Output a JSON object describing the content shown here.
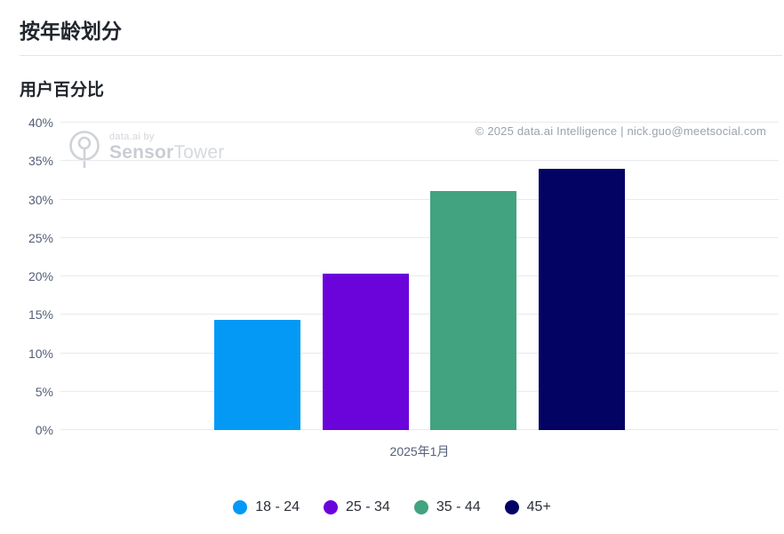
{
  "page": {
    "title": "按年龄划分",
    "copyright": "© 2025 data.ai Intelligence | nick.guo@meetsocial.com"
  },
  "watermark": {
    "prefix": "data.ai by",
    "brand_bold": "Sensor",
    "brand_light": "Tower",
    "logo_icon": "sensor-tower-logo"
  },
  "chart_data": {
    "type": "bar",
    "title": "用户百分比",
    "xlabel": "",
    "ylabel": "用户百分比",
    "x_categories": [
      "2025年1月"
    ],
    "series": [
      {
        "name": "18-24",
        "label": "18 - 24",
        "values": [
          14.3
        ],
        "color": "#0599F6"
      },
      {
        "name": "25-34",
        "label": "25 - 34",
        "values": [
          20.4
        ],
        "color": "#6B04DB"
      },
      {
        "name": "35-44",
        "label": "35 - 44",
        "values": [
          31.1
        ],
        "color": "#41A37F"
      },
      {
        "name": "45plus",
        "label": "45+",
        "values": [
          34.0
        ],
        "color": "#030363"
      }
    ],
    "ylim": [
      0,
      40
    ],
    "yticks": [
      0,
      5,
      10,
      15,
      20,
      25,
      30,
      35,
      40
    ],
    "ytick_suffix": "%",
    "grid": "horizontal",
    "legend_position": "bottom",
    "colors": {
      "axis_label": "#535F78",
      "gridline": "#E8EAEE",
      "copyright": "#9BA2AE"
    }
  }
}
